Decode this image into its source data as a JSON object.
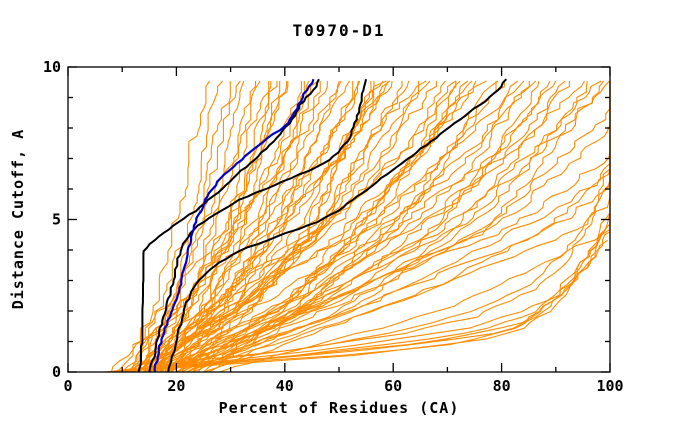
{
  "chart_data": {
    "type": "line",
    "title": "T0970-D1",
    "xlabel": "Percent of Residues (CA)",
    "ylabel": "Distance Cutoff, A",
    "xlim": [
      0,
      100
    ],
    "ylim": [
      0,
      10
    ],
    "x_ticks": {
      "major": [
        0,
        20,
        40,
        60,
        80,
        100
      ],
      "minor": [
        10,
        30,
        50,
        70,
        90
      ]
    },
    "y_ticks": {
      "major": [
        0,
        5,
        10
      ],
      "minor": [
        1,
        2,
        3,
        4,
        6,
        7,
        8,
        9
      ]
    },
    "grid": false,
    "legend": "none",
    "background": "#ffffff",
    "axis_color": "#000000",
    "curve_top_y": 9.6,
    "level_y": [
      0,
      2.5,
      5,
      7.5,
      9.6
    ],
    "series": {
      "orange_models": {
        "color": "#ff8c00",
        "levels_curves": [
          [
            11,
            16,
            20,
            23,
            25.5
          ],
          [
            13,
            18,
            22,
            25,
            28
          ],
          [
            12,
            19,
            24,
            27,
            30
          ],
          [
            14,
            20,
            25,
            28,
            31
          ],
          [
            13,
            21,
            26,
            30,
            33
          ],
          [
            15,
            22,
            27,
            31,
            34
          ],
          [
            14,
            22,
            28,
            32,
            36
          ],
          [
            16,
            24,
            30,
            34,
            37
          ],
          [
            13,
            23,
            29,
            33,
            38
          ],
          [
            15,
            25,
            31,
            35,
            39
          ],
          [
            16,
            26,
            32,
            36,
            40
          ],
          [
            17,
            25,
            30,
            34,
            38.5
          ],
          [
            9,
            21,
            30,
            36,
            41
          ],
          [
            14,
            24,
            32,
            38,
            43
          ],
          [
            10,
            23,
            33,
            39,
            44
          ],
          [
            16,
            26,
            34,
            40,
            45
          ],
          [
            13,
            27,
            35,
            41,
            46
          ],
          [
            11,
            24,
            34,
            42,
            47
          ],
          [
            15,
            28,
            36,
            42,
            48
          ],
          [
            17,
            29,
            37,
            44,
            50
          ],
          [
            8,
            25,
            36,
            44,
            51
          ],
          [
            18,
            30,
            39,
            46,
            52
          ],
          [
            14,
            29,
            39,
            47,
            53
          ],
          [
            12,
            26,
            38,
            46,
            54
          ],
          [
            16,
            31,
            41,
            48,
            55
          ],
          [
            19,
            32,
            42,
            50,
            56
          ],
          [
            12,
            28,
            40,
            49,
            57
          ],
          [
            19,
            33,
            43,
            51,
            57.5
          ],
          [
            17,
            33,
            44,
            52,
            58
          ],
          [
            15,
            32,
            44,
            52,
            59
          ],
          [
            20,
            34,
            45,
            53,
            60
          ],
          [
            13,
            30,
            43,
            52,
            61
          ],
          [
            18,
            35,
            47,
            55,
            62
          ],
          [
            14,
            32,
            46,
            56,
            63
          ],
          [
            16,
            34,
            48,
            58,
            65
          ],
          [
            21,
            36,
            48,
            57,
            66
          ],
          [
            12,
            33,
            48,
            59,
            67
          ],
          [
            18,
            36,
            50,
            61,
            68
          ],
          [
            15,
            35,
            50,
            62,
            70
          ],
          [
            20,
            38,
            52,
            63,
            71
          ],
          [
            22,
            40,
            54,
            65,
            72
          ],
          [
            13,
            36,
            52,
            64,
            73
          ],
          [
            17,
            39,
            55,
            66,
            74
          ],
          [
            24,
            42,
            56,
            67,
            75
          ],
          [
            21,
            40,
            56,
            68,
            76
          ],
          [
            14,
            38,
            55,
            68,
            77
          ],
          [
            19,
            42,
            58,
            70,
            79
          ],
          [
            16,
            40,
            58,
            71,
            80
          ],
          [
            22,
            44,
            60,
            72,
            81
          ],
          [
            18,
            43,
            61,
            74,
            83
          ],
          [
            15,
            41,
            60,
            74,
            84
          ],
          [
            23,
            46,
            63,
            76,
            85
          ],
          [
            25,
            45,
            62,
            75,
            86
          ],
          [
            17,
            44,
            64,
            78,
            88
          ],
          [
            26,
            48,
            66,
            79,
            89
          ],
          [
            20,
            47,
            67,
            80,
            90
          ],
          [
            14,
            45,
            66,
            81,
            92
          ],
          [
            22,
            50,
            70,
            83,
            93
          ],
          [
            18,
            48,
            70,
            84,
            95
          ],
          [
            24,
            52,
            73,
            86,
            97
          ],
          [
            16,
            50,
            72,
            86,
            98
          ],
          [
            19,
            52,
            76,
            90,
            99
          ],
          [
            21,
            53,
            75,
            88,
            100
          ],
          [
            20,
            55,
            78,
            95,
            108
          ],
          [
            22,
            58,
            82,
            100,
            112
          ],
          [
            18,
            56,
            82,
            101,
            115
          ],
          [
            25,
            62,
            88,
            106,
            118
          ],
          [
            20,
            60,
            88,
            108,
            122
          ],
          [
            26,
            66,
            92,
            112,
            126
          ],
          [
            23,
            64,
            94,
            115,
            130
          ],
          [
            28,
            70,
            100,
            120,
            135
          ]
        ],
        "point_curves": [
          [
            [
              7,
              0
            ],
            [
              30,
              0.3
            ],
            [
              55,
              0.6
            ],
            [
              75,
              1.0
            ],
            [
              85,
              1.5
            ],
            [
              90,
              2.2
            ],
            [
              94,
              3.0
            ],
            [
              97,
              3.9
            ],
            [
              100,
              4.8
            ]
          ],
          [
            [
              8,
              0
            ],
            [
              35,
              0.4
            ],
            [
              60,
              0.8
            ],
            [
              80,
              1.3
            ],
            [
              88,
              2.0
            ],
            [
              93,
              2.9
            ],
            [
              97,
              3.8
            ],
            [
              100,
              4.6
            ]
          ],
          [
            [
              7,
              0
            ],
            [
              25,
              0.2
            ],
            [
              50,
              0.5
            ],
            [
              70,
              0.9
            ],
            [
              82,
              1.4
            ],
            [
              88,
              2.1
            ],
            [
              93,
              3.1
            ],
            [
              97,
              4.2
            ],
            [
              100,
              5.2
            ]
          ],
          [
            [
              9,
              0
            ],
            [
              40,
              0.5
            ],
            [
              68,
              1.0
            ],
            [
              84,
              1.6
            ],
            [
              90,
              2.4
            ],
            [
              95,
              3.4
            ],
            [
              100,
              4.4
            ]
          ],
          [
            [
              8,
              0
            ],
            [
              45,
              0.6
            ],
            [
              72,
              1.2
            ],
            [
              86,
              1.9
            ],
            [
              92,
              2.8
            ],
            [
              96,
              3.8
            ],
            [
              100,
              5.0
            ]
          ],
          [
            [
              10,
              0
            ],
            [
              50,
              0.8
            ],
            [
              76,
              1.5
            ],
            [
              88,
              2.3
            ],
            [
              94,
              3.3
            ],
            [
              98,
              4.4
            ],
            [
              100,
              5.4
            ]
          ],
          [
            [
              7,
              0
            ],
            [
              20,
              0.3
            ],
            [
              40,
              0.7
            ],
            [
              60,
              1.2
            ],
            [
              75,
              1.8
            ],
            [
              85,
              2.6
            ],
            [
              91,
              3.5
            ],
            [
              95,
              4.5
            ],
            [
              98,
              5.6
            ],
            [
              100,
              6.4
            ]
          ],
          [
            [
              9,
              0
            ],
            [
              28,
              0.4
            ],
            [
              48,
              0.9
            ],
            [
              65,
              1.5
            ],
            [
              78,
              2.2
            ],
            [
              86,
              3.0
            ],
            [
              92,
              4.0
            ],
            [
              96,
              5.0
            ],
            [
              99,
              6.2
            ],
            [
              100,
              7.0
            ]
          ]
        ]
      },
      "black_models": {
        "color": "#000000",
        "curves": [
          [
            [
              13,
              0
            ],
            [
              13.5,
              0.5
            ],
            [
              13.6,
              1.5
            ],
            [
              13.7,
              2.8
            ],
            [
              13.8,
              3.9
            ],
            [
              15,
              4.2
            ],
            [
              17,
              4.5
            ],
            [
              19.5,
              4.8
            ],
            [
              22,
              5.1
            ],
            [
              24.5,
              5.4
            ],
            [
              27,
              5.8
            ],
            [
              29.5,
              6.2
            ],
            [
              32,
              6.6
            ],
            [
              34.5,
              7.0
            ],
            [
              37,
              7.4
            ],
            [
              39.5,
              7.9
            ],
            [
              41.5,
              8.3
            ],
            [
              43,
              8.8
            ],
            [
              44.5,
              9.1
            ],
            [
              45.5,
              9.3
            ],
            [
              46.3,
              9.6
            ]
          ],
          [
            [
              15,
              0
            ],
            [
              15.8,
              0.5
            ],
            [
              16.5,
              1.1
            ],
            [
              17.5,
              1.8
            ],
            [
              18.6,
              2.4
            ],
            [
              19.5,
              3.0
            ],
            [
              20.2,
              3.7
            ],
            [
              21.5,
              4.3
            ],
            [
              24,
              4.8
            ],
            [
              27.5,
              5.2
            ],
            [
              31,
              5.6
            ],
            [
              35,
              5.9
            ],
            [
              39,
              6.2
            ],
            [
              43,
              6.5
            ],
            [
              47,
              6.8
            ],
            [
              50,
              7.2
            ],
            [
              52,
              7.7
            ],
            [
              53,
              8.2
            ],
            [
              54,
              8.8
            ],
            [
              54.5,
              9.2
            ],
            [
              55,
              9.6
            ]
          ],
          [
            [
              18.5,
              0
            ],
            [
              19.5,
              0.7
            ],
            [
              20.5,
              1.4
            ],
            [
              21.5,
              2.1
            ],
            [
              23,
              2.7
            ],
            [
              25,
              3.2
            ],
            [
              28,
              3.6
            ],
            [
              32,
              4.0
            ],
            [
              36.5,
              4.3
            ],
            [
              41,
              4.6
            ],
            [
              46,
              4.9
            ],
            [
              50,
              5.3
            ],
            [
              53,
              5.7
            ],
            [
              56,
              6.1
            ],
            [
              59,
              6.5
            ],
            [
              62,
              6.9
            ],
            [
              65,
              7.3
            ],
            [
              68,
              7.7
            ],
            [
              71,
              8.1
            ],
            [
              74,
              8.5
            ],
            [
              77,
              8.9
            ],
            [
              79,
              9.2
            ],
            [
              81,
              9.6
            ]
          ]
        ]
      },
      "blue_model": {
        "color": "#0000cd",
        "curves": [
          [
            [
              16,
              0
            ],
            [
              16.5,
              0.5
            ],
            [
              17.2,
              1.0
            ],
            [
              18,
              1.5
            ],
            [
              19.3,
              2.1
            ],
            [
              20.5,
              2.7
            ],
            [
              21.3,
              3.3
            ],
            [
              22,
              3.9
            ],
            [
              22.8,
              4.5
            ],
            [
              24,
              5.1
            ],
            [
              25.5,
              5.7
            ],
            [
              27,
              6.1
            ],
            [
              28.5,
              6.4
            ],
            [
              31,
              6.8
            ],
            [
              33,
              7.1
            ],
            [
              35.5,
              7.5
            ],
            [
              38,
              7.8
            ],
            [
              40.5,
              8.1
            ],
            [
              42,
              8.6
            ],
            [
              43.5,
              9.1
            ],
            [
              44.5,
              9.35
            ],
            [
              45.5,
              9.6
            ]
          ]
        ]
      }
    }
  }
}
